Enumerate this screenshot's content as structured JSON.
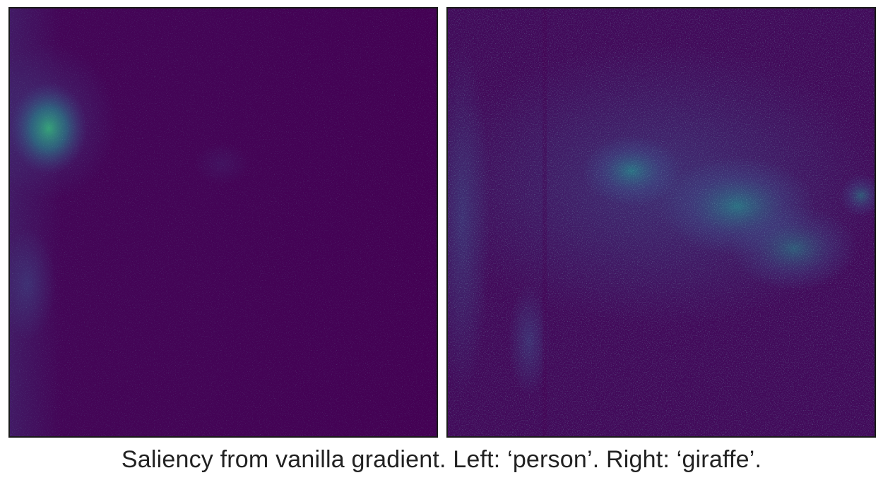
{
  "caption": "Saliency from vanilla gradient. Left: ‘person’. Right: ‘giraffe’.",
  "colors": {
    "background": "#440154",
    "low": "#46085c",
    "mid": "#3b528b",
    "high": "#21918c",
    "peak": "#35b779"
  },
  "panels": [
    {
      "name": "left-saliency-map",
      "class_label": "person"
    },
    {
      "name": "right-saliency-map",
      "class_label": "giraffe"
    }
  ]
}
